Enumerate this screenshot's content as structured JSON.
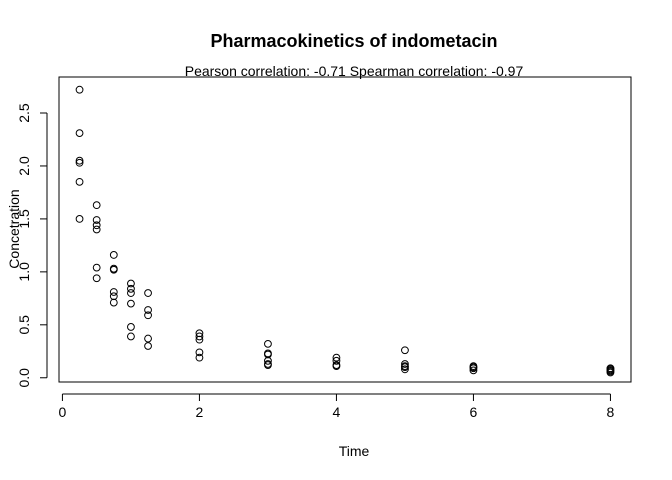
{
  "chart_data": {
    "type": "scatter",
    "title": "Pharmacokinetics of indometacin",
    "subtitle": "Pearson correlation: -0.71 Spearman correlation: -0.97",
    "xlabel": "Time",
    "ylabel": "Concetration",
    "xlim": [
      -0.05,
      8.3
    ],
    "ylim": [
      -0.04,
      2.84
    ],
    "xticks": [
      0,
      2,
      4,
      6,
      8
    ],
    "yticks": [
      0.0,
      0.5,
      1.0,
      1.5,
      2.0,
      2.5
    ],
    "xtick_labels": [
      "0",
      "2",
      "4",
      "6",
      "8"
    ],
    "ytick_labels": [
      "0.0",
      "0.5",
      "1.0",
      "1.5",
      "2.0",
      "2.5"
    ],
    "marker": "open-circle",
    "grid": false,
    "points": [
      {
        "x": 0.25,
        "y": 2.72
      },
      {
        "x": 0.25,
        "y": 2.31
      },
      {
        "x": 0.25,
        "y": 2.05
      },
      {
        "x": 0.25,
        "y": 2.03
      },
      {
        "x": 0.25,
        "y": 1.85
      },
      {
        "x": 0.25,
        "y": 1.5
      },
      {
        "x": 0.5,
        "y": 1.63
      },
      {
        "x": 0.5,
        "y": 1.49
      },
      {
        "x": 0.5,
        "y": 1.44
      },
      {
        "x": 0.5,
        "y": 1.4
      },
      {
        "x": 0.5,
        "y": 1.04
      },
      {
        "x": 0.5,
        "y": 0.94
      },
      {
        "x": 0.75,
        "y": 1.16
      },
      {
        "x": 0.75,
        "y": 1.03
      },
      {
        "x": 0.75,
        "y": 1.02
      },
      {
        "x": 0.75,
        "y": 0.81
      },
      {
        "x": 0.75,
        "y": 0.77
      },
      {
        "x": 0.75,
        "y": 0.71
      },
      {
        "x": 1.0,
        "y": 0.89
      },
      {
        "x": 1.0,
        "y": 0.84
      },
      {
        "x": 1.0,
        "y": 0.8
      },
      {
        "x": 1.0,
        "y": 0.7
      },
      {
        "x": 1.0,
        "y": 0.48
      },
      {
        "x": 1.0,
        "y": 0.39
      },
      {
        "x": 1.25,
        "y": 0.8
      },
      {
        "x": 1.25,
        "y": 0.64
      },
      {
        "x": 1.25,
        "y": 0.59
      },
      {
        "x": 1.25,
        "y": 0.37
      },
      {
        "x": 1.25,
        "y": 0.3
      },
      {
        "x": 2.0,
        "y": 0.42
      },
      {
        "x": 2.0,
        "y": 0.39
      },
      {
        "x": 2.0,
        "y": 0.36
      },
      {
        "x": 2.0,
        "y": 0.24
      },
      {
        "x": 2.0,
        "y": 0.19
      },
      {
        "x": 3.0,
        "y": 0.32
      },
      {
        "x": 3.0,
        "y": 0.23
      },
      {
        "x": 3.0,
        "y": 0.22
      },
      {
        "x": 3.0,
        "y": 0.16
      },
      {
        "x": 3.0,
        "y": 0.13
      },
      {
        "x": 3.0,
        "y": 0.12
      },
      {
        "x": 4.0,
        "y": 0.19
      },
      {
        "x": 4.0,
        "y": 0.16
      },
      {
        "x": 4.0,
        "y": 0.12
      },
      {
        "x": 4.0,
        "y": 0.11
      },
      {
        "x": 5.0,
        "y": 0.26
      },
      {
        "x": 5.0,
        "y": 0.13
      },
      {
        "x": 5.0,
        "y": 0.11
      },
      {
        "x": 5.0,
        "y": 0.1
      },
      {
        "x": 5.0,
        "y": 0.08
      },
      {
        "x": 6.0,
        "y": 0.11
      },
      {
        "x": 6.0,
        "y": 0.1
      },
      {
        "x": 6.0,
        "y": 0.09
      },
      {
        "x": 6.0,
        "y": 0.07
      },
      {
        "x": 8.0,
        "y": 0.09
      },
      {
        "x": 8.0,
        "y": 0.08
      },
      {
        "x": 8.0,
        "y": 0.07
      },
      {
        "x": 8.0,
        "y": 0.06
      },
      {
        "x": 8.0,
        "y": 0.05
      }
    ]
  }
}
